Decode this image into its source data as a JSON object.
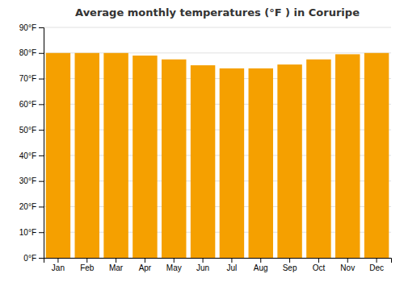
{
  "chart_data": {
    "type": "bar",
    "title": "Average monthly temperatures (°F ) in Coruripe",
    "categories": [
      "Jan",
      "Feb",
      "Mar",
      "Apr",
      "May",
      "Jun",
      "Jul",
      "Aug",
      "Sep",
      "Oct",
      "Nov",
      "Dec"
    ],
    "values": [
      80.0,
      80.0,
      80.0,
      79.0,
      77.5,
      75.2,
      74.0,
      74.0,
      75.5,
      77.5,
      79.5,
      80.0
    ],
    "color": "#F5A000",
    "ylim": [
      0,
      90
    ],
    "yticks": [
      {
        "value": 0,
        "label": "0°F"
      },
      {
        "value": 10,
        "label": "10°F"
      },
      {
        "value": 20,
        "label": "20°F"
      },
      {
        "value": 30,
        "label": "30°F"
      },
      {
        "value": 40,
        "label": "40°F"
      },
      {
        "value": 50,
        "label": "50°F"
      },
      {
        "value": 60,
        "label": "60°F"
      },
      {
        "value": 70,
        "label": "70°F"
      },
      {
        "value": 80,
        "label": "80°F"
      },
      {
        "value": 90,
        "label": "90°F"
      }
    ],
    "grid": true
  }
}
